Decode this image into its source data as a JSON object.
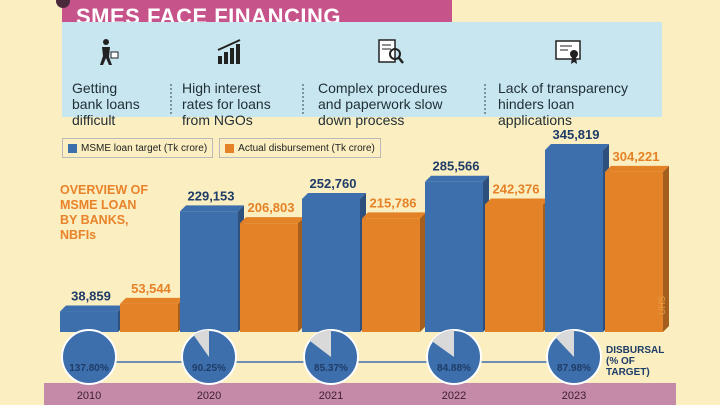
{
  "title": "SMES FACE FINANCING CHALLENGE",
  "challenges": [
    {
      "icon": "person-walking-away-icon",
      "lines": [
        "Getting",
        "bank loans",
        "difficult"
      ]
    },
    {
      "icon": "rising-bars-icon",
      "lines": [
        "High interest",
        "rates for loans",
        "from NGOs"
      ]
    },
    {
      "icon": "document-search-icon",
      "lines": [
        "Complex procedures",
        "and paperwork slow",
        "down process"
      ]
    },
    {
      "icon": "certificate-icon",
      "lines": [
        "Lack of transparency",
        "hinders loan",
        "applications"
      ]
    }
  ],
  "overview_lines": [
    "OVERVIEW OF",
    "MSME LOAN",
    "BY BANKS,",
    "NBFIs"
  ],
  "disbursal_note_lines": [
    "DISBURSAL",
    "(% OF",
    "TARGET)"
  ],
  "side_tag": "UHS",
  "colors": {
    "target": "#3e6fad",
    "disbursement": "#e48228",
    "title_bg": "#c6548b",
    "year_band": "#c48aa8"
  },
  "chart_data": {
    "type": "bar",
    "categories": [
      "2010",
      "2020",
      "2021",
      "2022",
      "2023"
    ],
    "series": [
      {
        "name": "MSME loan target (Tk crore)",
        "values": [
          38859,
          229153,
          252760,
          285566,
          345819
        ],
        "labels": [
          "38,859",
          "229,153",
          "252,760",
          "285,566",
          "345,819"
        ]
      },
      {
        "name": "Actual disbursement (Tk crore)",
        "values": [
          53544,
          206803,
          215786,
          242376,
          304221
        ],
        "labels": [
          "53,544",
          "206,803",
          "215,786",
          "242,376",
          "304,221"
        ]
      }
    ],
    "disbursal_pct": [
      137.8,
      90.25,
      85.37,
      84.88,
      87.98
    ],
    "disbursal_pct_labels": [
      "137.80%",
      "90.25%",
      "85.37%",
      "84.88%",
      "87.98%"
    ],
    "ylim": [
      0,
      345819
    ]
  }
}
